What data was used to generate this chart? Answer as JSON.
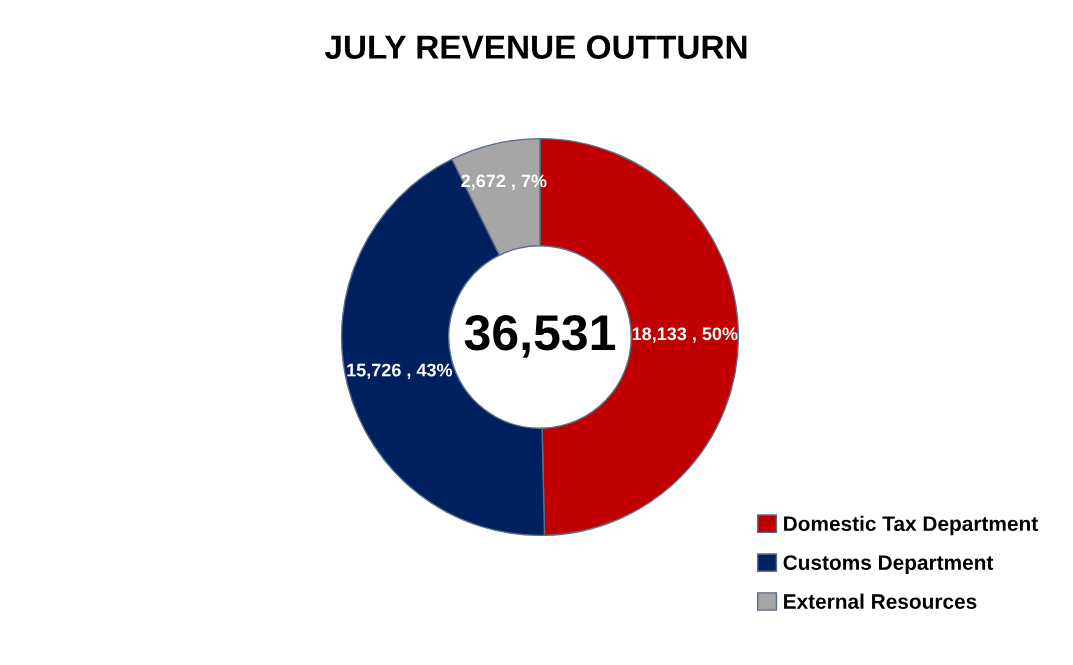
{
  "chart_data": {
    "type": "donut",
    "title": "JULY REVENUE OUTTURN",
    "categories": [
      "Domestic Tax Department",
      "Customs Department",
      "External Resources"
    ],
    "values": [
      18133,
      15726,
      2672
    ],
    "colors": [
      "#c00000",
      "#002060",
      "#a6a6a6"
    ],
    "value_labels": [
      "18,133 , 50%",
      "15,726 , 43%",
      "2,672 , 7%"
    ],
    "annotations": [
      "36,531"
    ],
    "legend": "bottom right"
  }
}
